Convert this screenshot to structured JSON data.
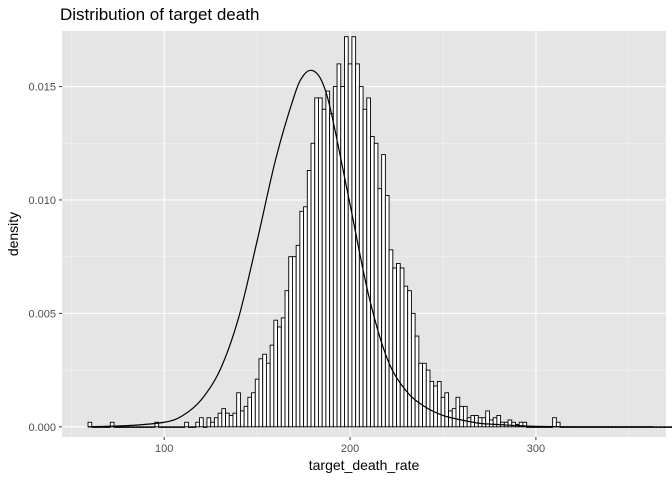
{
  "chart_data": {
    "type": "bar",
    "title": "Distribution of target death",
    "xlabel": "target_death_rate",
    "ylabel": "density",
    "xlim": [
      45,
      370
    ],
    "ylim": [
      -0.00045,
      0.01745
    ],
    "x_ticks": [
      100,
      200,
      300
    ],
    "x_tick_labels": [
      "100",
      "200",
      "300"
    ],
    "y_ticks": [
      0,
      0.005,
      0.01,
      0.015
    ],
    "y_tick_labels": [
      "0.000",
      "0.005",
      "0.010",
      "0.015"
    ],
    "grid": true,
    "background": "#e5e5e5",
    "bar_fill": "#ffffff",
    "bar_outline": "#000000",
    "grid_major_color": "#ffffff",
    "histogram": {
      "bin_width": 2,
      "start": 59,
      "densities": [
        0.0002,
        0.0,
        0.0,
        0.0,
        0.0,
        0.0,
        0.0002,
        0.0,
        0.0,
        0.0,
        0.0,
        0.0,
        0.0,
        0.0,
        0.0,
        0.0,
        0.0,
        0.0,
        0.0002,
        0.0,
        0.0,
        0.0,
        0.0,
        0.0,
        0.0,
        0.0,
        0.0002,
        0.0,
        0.0,
        0.0002,
        0.0004,
        0.0,
        0.0004,
        0.0002,
        0.0004,
        0.0006,
        0.0008,
        0.0006,
        0.0005,
        0.0006,
        0.0015,
        0.0007,
        0.0009,
        0.0013,
        0.0015,
        0.0021,
        0.003,
        0.0032,
        0.0028,
        0.0036,
        0.0047,
        0.0044,
        0.0048,
        0.006,
        0.0075,
        0.0075,
        0.008,
        0.0095,
        0.0097,
        0.0113,
        0.0125,
        0.0145,
        0.0145,
        0.014,
        0.0148,
        0.0138,
        0.015,
        0.016,
        0.015,
        0.0172,
        0.016,
        0.0172,
        0.016,
        0.015,
        0.014,
        0.0145,
        0.0128,
        0.0125,
        0.0105,
        0.012,
        0.0102,
        0.0078,
        0.007,
        0.0072,
        0.007,
        0.0062,
        0.006,
        0.005,
        0.004,
        0.0028,
        0.0028,
        0.0025,
        0.002,
        0.0018,
        0.002,
        0.0013,
        0.0015,
        0.0007,
        0.0008,
        0.0013,
        0.0009,
        0.0009,
        0.0004,
        0.0005,
        0.0005,
        0.0004,
        0.0004,
        0.0007,
        0.0003,
        0.0004,
        0.0005,
        0.0002,
        0.0002,
        0.0003,
        0.0002,
        0.0001,
        0.0002,
        0.0002,
        0.0,
        0.0,
        0.0,
        0.0,
        0.0,
        0.0,
        0.0,
        0.0004,
        0.0002,
        0.0,
        0.0,
        0.0,
        0.0,
        0.0,
        0.0,
        0.0,
        0.0,
        0.0,
        0.0,
        0.0,
        0.0,
        0.0,
        0.0,
        0.0,
        0.0,
        0.0,
        0.0,
        0.0,
        0.0,
        0.0,
        0.0,
        0.0,
        0.0,
        0.0,
        0.0,
        0.0,
        0.0,
        0.0,
        0.0,
        0.0,
        0.0,
        0.0,
        0.0,
        0.0,
        0.0,
        0.0,
        0.0,
        0.0,
        0.0,
        0.0002
      ]
    },
    "density_curve": {
      "x": [
        59,
        80,
        100,
        110,
        120,
        130,
        140,
        150,
        160,
        170,
        175,
        180,
        185,
        190,
        200,
        210,
        220,
        230,
        240,
        250,
        260,
        270,
        280,
        290,
        300,
        320,
        340,
        363
      ],
      "y": [
        0.0,
        5e-05,
        0.0002,
        0.0005,
        0.0012,
        0.0025,
        0.0048,
        0.0082,
        0.0118,
        0.0146,
        0.0155,
        0.0157,
        0.0152,
        0.0138,
        0.0098,
        0.0058,
        0.003,
        0.0016,
        0.0009,
        0.0005,
        0.0003,
        0.00015,
        0.0001,
        5e-05,
        2e-05,
        0.0,
        0.0,
        0.0
      ]
    }
  }
}
